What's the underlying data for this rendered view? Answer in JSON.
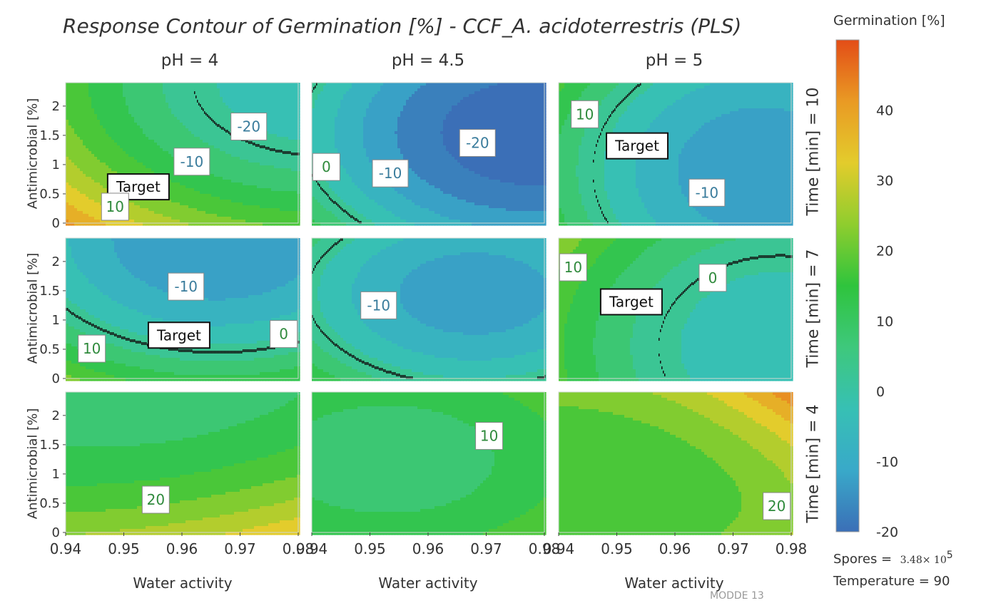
{
  "chart_data": {
    "type": "contour",
    "title": "Response Contour of Germination [%] - CCF_A. acidoterrestris (PLS)",
    "xlabel": "Water activity",
    "ylabel": "Antimicrobial [%]",
    "xlim": [
      0.94,
      0.98
    ],
    "ylim": [
      0,
      2.4
    ],
    "x_ticks": [
      "0.94",
      "0.95",
      "0.96",
      "0.97",
      "0.98"
    ],
    "y_ticks": [
      "0",
      "0.5",
      "1",
      "1.5",
      "2"
    ],
    "columns": [
      "pH = 4",
      "pH = 4.5",
      "pH = 5"
    ],
    "rows": [
      "Time [min] = 10",
      "Time [min] = 7",
      "Time [min] = 4"
    ],
    "colorbar": {
      "title": "Germination [%]",
      "min": -20,
      "max": 50,
      "ticks": [
        "-20",
        "-10",
        "0",
        "10",
        "20",
        "30",
        "40"
      ],
      "stops": [
        "#3b6fb7",
        "#39a9c9",
        "#37c0b4",
        "#3ec87c",
        "#2fc43d",
        "#8fcd2e",
        "#e3cc2c",
        "#e99a24",
        "#e34d17"
      ]
    },
    "panels": [
      {
        "row": 0,
        "col": 0,
        "labels": [
          {
            "text": "-20",
            "x": 0.9715,
            "y": 1.65
          },
          {
            "text": "-10",
            "x": 0.9617,
            "y": 1.05
          },
          {
            "text": "Target",
            "x": 0.9525,
            "y": 0.62
          },
          {
            "text": "10",
            "x": 0.9485,
            "y": 0.28
          }
        ]
      },
      {
        "row": 0,
        "col": 1,
        "labels": [
          {
            "text": "-20",
            "x": 0.9685,
            "y": 1.37
          },
          {
            "text": "-10",
            "x": 0.9535,
            "y": 0.85
          },
          {
            "text": "0",
            "x": 0.9425,
            "y": 0.96
          }
        ]
      },
      {
        "row": 0,
        "col": 2,
        "labels": [
          {
            "text": "10",
            "x": 0.9445,
            "y": 1.86
          },
          {
            "text": "Target",
            "x": 0.9535,
            "y": 1.32
          },
          {
            "text": "-10",
            "x": 0.9655,
            "y": 0.52
          }
        ]
      },
      {
        "row": 1,
        "col": 0,
        "labels": [
          {
            "text": "-10",
            "x": 0.9607,
            "y": 1.57
          },
          {
            "text": "Target",
            "x": 0.9595,
            "y": 0.74
          },
          {
            "text": "10",
            "x": 0.9445,
            "y": 0.51
          },
          {
            "text": "0",
            "x": 0.9775,
            "y": 0.76
          }
        ]
      },
      {
        "row": 1,
        "col": 1,
        "labels": [
          {
            "text": "-10",
            "x": 0.9515,
            "y": 1.25
          }
        ]
      },
      {
        "row": 1,
        "col": 2,
        "labels": [
          {
            "text": "10",
            "x": 0.9425,
            "y": 1.9
          },
          {
            "text": "Target",
            "x": 0.9525,
            "y": 1.31
          },
          {
            "text": "0",
            "x": 0.9665,
            "y": 1.72
          }
        ]
      },
      {
        "row": 2,
        "col": 0,
        "labels": [
          {
            "text": "20",
            "x": 0.9555,
            "y": 0.56
          }
        ]
      },
      {
        "row": 2,
        "col": 1,
        "labels": [
          {
            "text": "10",
            "x": 0.9705,
            "y": 1.65
          }
        ]
      },
      {
        "row": 2,
        "col": 2,
        "labels": [
          {
            "text": "20",
            "x": 0.9775,
            "y": 0.45
          }
        ]
      }
    ]
  },
  "footer": {
    "spores_label": "Spores =",
    "spores_value": "3.48× 10",
    "spores_exp": "5",
    "temperature": "Temperature = 90",
    "watermark": "MODDE 13"
  }
}
